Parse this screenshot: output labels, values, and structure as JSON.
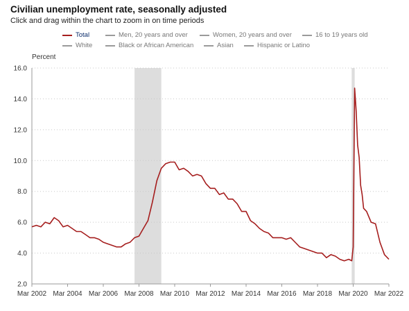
{
  "title": "Civilian unemployment rate, seasonally adjusted",
  "subtitle": "Click and drag within the chart to zoom in on time periods",
  "legend_rows": [
    [
      {
        "label": "Total",
        "active": true
      },
      {
        "label": "Men, 20 years and over",
        "active": false
      },
      {
        "label": "Women, 20 years and over",
        "active": false
      },
      {
        "label": "16 to 19 years old",
        "active": false
      }
    ],
    [
      {
        "label": "White",
        "active": false
      },
      {
        "label": "Black or African American",
        "active": false
      },
      {
        "label": "Asian",
        "active": false
      },
      {
        "label": "Hispanic or Latino",
        "active": false
      }
    ]
  ],
  "colors": {
    "line": "#a51d1d",
    "recession": "#dddddd",
    "grid": "#c8c8c8",
    "axis": "#9a9a9a"
  },
  "chart_data": {
    "type": "line",
    "ylabel": "Percent",
    "ylim": [
      2.0,
      16.0
    ],
    "yticks": [
      "2.0",
      "4.0",
      "6.0",
      "8.0",
      "10.0",
      "12.0",
      "14.0",
      "16.0"
    ],
    "xlim": [
      "2002-03",
      "2022-03"
    ],
    "xticks": [
      {
        "label": "Mar 2002",
        "date": "2002-03"
      },
      {
        "label": "Mar 2004",
        "date": "2004-03"
      },
      {
        "label": "Mar 2006",
        "date": "2006-03"
      },
      {
        "label": "Mar 2008",
        "date": "2008-03"
      },
      {
        "label": "Mar 2010",
        "date": "2010-03"
      },
      {
        "label": "Mar 2012",
        "date": "2012-03"
      },
      {
        "label": "Mar 2014",
        "date": "2014-03"
      },
      {
        "label": "Mar 2016",
        "date": "2016-03"
      },
      {
        "label": "Mar 2018",
        "date": "2018-03"
      },
      {
        "label": "Mar 2020",
        "date": "2020-03"
      },
      {
        "label": "Mar 2022",
        "date": "2022-03"
      }
    ],
    "grid": "horizontal dotted",
    "recessions": [
      {
        "start": "2007-12",
        "end": "2009-06"
      },
      {
        "start": "2020-02",
        "end": "2020-04"
      }
    ],
    "series": [
      {
        "name": "Total",
        "points": [
          [
            "2002-03",
            5.7
          ],
          [
            "2002-06",
            5.8
          ],
          [
            "2002-09",
            5.7
          ],
          [
            "2002-12",
            6.0
          ],
          [
            "2003-03",
            5.9
          ],
          [
            "2003-06",
            6.3
          ],
          [
            "2003-09",
            6.1
          ],
          [
            "2003-12",
            5.7
          ],
          [
            "2004-03",
            5.8
          ],
          [
            "2004-06",
            5.6
          ],
          [
            "2004-09",
            5.4
          ],
          [
            "2004-12",
            5.4
          ],
          [
            "2005-03",
            5.2
          ],
          [
            "2005-06",
            5.0
          ],
          [
            "2005-09",
            5.0
          ],
          [
            "2005-12",
            4.9
          ],
          [
            "2006-03",
            4.7
          ],
          [
            "2006-06",
            4.6
          ],
          [
            "2006-09",
            4.5
          ],
          [
            "2006-12",
            4.4
          ],
          [
            "2007-03",
            4.4
          ],
          [
            "2007-06",
            4.6
          ],
          [
            "2007-09",
            4.7
          ],
          [
            "2007-12",
            5.0
          ],
          [
            "2008-03",
            5.1
          ],
          [
            "2008-06",
            5.6
          ],
          [
            "2008-09",
            6.1
          ],
          [
            "2008-12",
            7.3
          ],
          [
            "2009-03",
            8.7
          ],
          [
            "2009-06",
            9.5
          ],
          [
            "2009-09",
            9.8
          ],
          [
            "2009-12",
            9.9
          ],
          [
            "2010-03",
            9.9
          ],
          [
            "2010-06",
            9.4
          ],
          [
            "2010-09",
            9.5
          ],
          [
            "2010-12",
            9.3
          ],
          [
            "2011-03",
            9.0
          ],
          [
            "2011-06",
            9.1
          ],
          [
            "2011-09",
            9.0
          ],
          [
            "2011-12",
            8.5
          ],
          [
            "2012-03",
            8.2
          ],
          [
            "2012-06",
            8.2
          ],
          [
            "2012-09",
            7.8
          ],
          [
            "2012-12",
            7.9
          ],
          [
            "2013-03",
            7.5
          ],
          [
            "2013-06",
            7.5
          ],
          [
            "2013-09",
            7.2
          ],
          [
            "2013-12",
            6.7
          ],
          [
            "2014-03",
            6.7
          ],
          [
            "2014-06",
            6.1
          ],
          [
            "2014-09",
            5.9
          ],
          [
            "2014-12",
            5.6
          ],
          [
            "2015-03",
            5.4
          ],
          [
            "2015-06",
            5.3
          ],
          [
            "2015-09",
            5.0
          ],
          [
            "2015-12",
            5.0
          ],
          [
            "2016-03",
            5.0
          ],
          [
            "2016-06",
            4.9
          ],
          [
            "2016-09",
            5.0
          ],
          [
            "2016-12",
            4.7
          ],
          [
            "2017-03",
            4.4
          ],
          [
            "2017-06",
            4.3
          ],
          [
            "2017-09",
            4.2
          ],
          [
            "2017-12",
            4.1
          ],
          [
            "2018-03",
            4.0
          ],
          [
            "2018-06",
            4.0
          ],
          [
            "2018-09",
            3.7
          ],
          [
            "2018-12",
            3.9
          ],
          [
            "2019-03",
            3.8
          ],
          [
            "2019-06",
            3.6
          ],
          [
            "2019-09",
            3.5
          ],
          [
            "2019-12",
            3.6
          ],
          [
            "2020-02",
            3.5
          ],
          [
            "2020-03",
            4.4
          ],
          [
            "2020-04",
            14.7
          ],
          [
            "2020-05",
            13.2
          ],
          [
            "2020-06",
            11.0
          ],
          [
            "2020-07",
            10.2
          ],
          [
            "2020-08",
            8.4
          ],
          [
            "2020-09",
            7.8
          ],
          [
            "2020-10",
            6.9
          ],
          [
            "2020-12",
            6.7
          ],
          [
            "2021-03",
            6.0
          ],
          [
            "2021-06",
            5.9
          ],
          [
            "2021-09",
            4.7
          ],
          [
            "2021-12",
            3.9
          ],
          [
            "2022-03",
            3.6
          ]
        ]
      }
    ]
  }
}
